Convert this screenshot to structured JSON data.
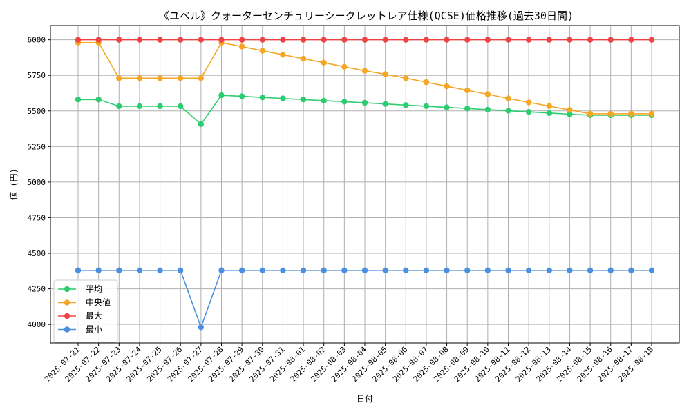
{
  "chart_data": {
    "type": "line",
    "title": "《ユベル》クォーターセンチュリーシークレットレア仕様(QCSE)価格推移(過去30日間)",
    "xlabel": "日付",
    "ylabel": "値 (円)",
    "ylim": [
      3870,
      6100
    ],
    "yticks": [
      4000,
      4250,
      4500,
      4750,
      5000,
      5250,
      5500,
      5750,
      6000
    ],
    "grid": true,
    "legend_position": "lower-left",
    "categories": [
      "2025-07-21",
      "2025-07-22",
      "2025-07-23",
      "2025-07-24",
      "2025-07-25",
      "2025-07-26",
      "2025-07-27",
      "2025-07-28",
      "2025-07-29",
      "2025-07-30",
      "2025-07-31",
      "2025-08-01",
      "2025-08-02",
      "2025-08-03",
      "2025-08-04",
      "2025-08-05",
      "2025-08-06",
      "2025-08-07",
      "2025-08-08",
      "2025-08-09",
      "2025-08-10",
      "2025-08-11",
      "2025-08-12",
      "2025-08-13",
      "2025-08-14",
      "2025-08-15",
      "2025-08-16",
      "2025-08-17",
      "2025-08-18"
    ],
    "series": [
      {
        "name": "平均",
        "color": "#2ecc71",
        "values": [
          5580,
          5580,
          5533,
          5533,
          5533,
          5533,
          5407,
          5610,
          5603,
          5595,
          5588,
          5580,
          5572,
          5565,
          5557,
          5549,
          5541,
          5533,
          5525,
          5517,
          5509,
          5501,
          5493,
          5485,
          5477,
          5470,
          5470,
          5470,
          5470
        ]
      },
      {
        "name": "中央値",
        "color": "#f5a623",
        "values": [
          5980,
          5980,
          5730,
          5730,
          5730,
          5730,
          5730,
          5980,
          5952,
          5923,
          5895,
          5867,
          5839,
          5810,
          5782,
          5758,
          5730,
          5702,
          5673,
          5645,
          5617,
          5588,
          5560,
          5534,
          5507,
          5480,
          5480,
          5480,
          5480
        ]
      },
      {
        "name": "最大",
        "color": "#ef4444",
        "values": [
          6000,
          6000,
          6000,
          6000,
          6000,
          6000,
          6000,
          6000,
          6000,
          6000,
          6000,
          6000,
          6000,
          6000,
          6000,
          6000,
          6000,
          6000,
          6000,
          6000,
          6000,
          6000,
          6000,
          6000,
          6000,
          6000,
          6000,
          6000,
          6000
        ]
      },
      {
        "name": "最小",
        "color": "#4a90e2",
        "values": [
          4380,
          4380,
          4380,
          4380,
          4380,
          4380,
          3980,
          4380,
          4380,
          4380,
          4380,
          4380,
          4380,
          4380,
          4380,
          4380,
          4380,
          4380,
          4380,
          4380,
          4380,
          4380,
          4380,
          4380,
          4380,
          4380,
          4380,
          4380,
          4380
        ]
      }
    ]
  }
}
